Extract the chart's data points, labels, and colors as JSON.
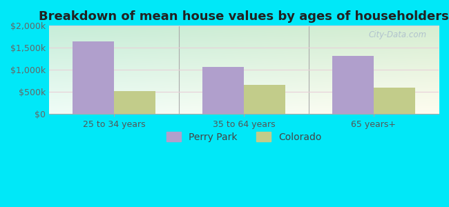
{
  "title": "Breakdown of mean house values by ages of householders",
  "categories": [
    "25 to 34 years",
    "35 to 64 years",
    "65 years+"
  ],
  "perry_park_values": [
    1650000,
    1060000,
    1320000
  ],
  "colorado_values": [
    510000,
    660000,
    590000
  ],
  "ylim": [
    0,
    2000000
  ],
  "yticks": [
    0,
    500000,
    1000000,
    1500000,
    2000000
  ],
  "ytick_labels": [
    "$0",
    "$500k",
    "$1,000k",
    "$1,500k",
    "$2,000k"
  ],
  "bar_color_perry": "#b09fcc",
  "bar_color_colorado": "#c2cc8a",
  "background_outer": "#00e8f8",
  "legend_perry": "Perry Park",
  "legend_colorado": "Colorado",
  "bar_width": 0.32,
  "watermark": "City-Data.com",
  "title_fontsize": 13,
  "tick_fontsize": 9,
  "legend_fontsize": 10,
  "grid_color": "#ddeecc"
}
